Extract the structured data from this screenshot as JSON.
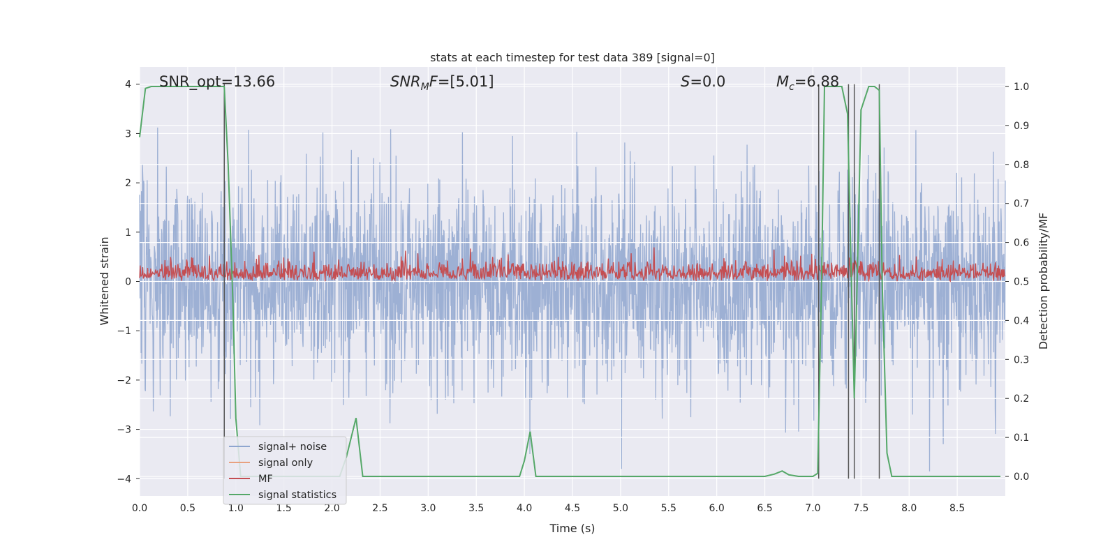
{
  "chart_data": {
    "type": "line",
    "title": "stats at each timestep for test data 389 [signal=0]",
    "xlabel": "Time (s)",
    "ylabel_left": "Whitened strain",
    "ylabel_right": "Detection probability/MF",
    "xlim": [
      0.0,
      9.0
    ],
    "ylim_left": [
      -4.35,
      4.35
    ],
    "ylim_right": [
      -0.05,
      1.05
    ],
    "xticks": [
      "0.0",
      "0.5",
      "1.0",
      "1.5",
      "2.0",
      "2.5",
      "3.0",
      "3.5",
      "4.0",
      "4.5",
      "5.0",
      "5.5",
      "6.0",
      "6.5",
      "7.0",
      "7.5",
      "8.0",
      "8.5"
    ],
    "yticks_left": [
      "4",
      "3",
      "2",
      "1",
      "0",
      "−1",
      "−2",
      "−3",
      "−4"
    ],
    "yticks_right": [
      "1.0",
      "0.9",
      "0.8",
      "0.7",
      "0.6",
      "0.5",
      "0.4",
      "0.3",
      "0.2",
      "0.1",
      "0.0"
    ],
    "grid": true,
    "annotations": {
      "snr_opt": "SNR_opt=13.66",
      "snr_mf": "=[5.01]",
      "s_val": "=0.0",
      "mc_val": "=6.88"
    },
    "legend": {
      "placement": "lower-left",
      "entries": [
        "signal+ noise",
        "signal only",
        "MF",
        "signal statistics"
      ]
    },
    "colors": {
      "signal_noise": "#8fa6cf",
      "signal_only": "#e8a17f",
      "mf": "#c44e52",
      "signal_statistics": "#55a868",
      "vlines": "#555555",
      "plot_bg": "#eaeaf2"
    },
    "series": [
      {
        "name": "signal statistics",
        "axis": "right",
        "x": [
          0.0,
          0.06,
          0.12,
          0.2,
          0.4,
          0.6,
          0.88,
          0.92,
          0.97,
          1.0,
          1.05,
          1.12,
          1.2,
          1.3,
          1.5,
          1.7,
          1.9,
          2.08,
          2.15,
          2.25,
          2.32,
          2.4,
          3.0,
          3.5,
          3.95,
          4.0,
          4.06,
          4.12,
          4.2,
          5.0,
          6.0,
          6.5,
          6.6,
          6.68,
          6.75,
          6.85,
          7.0,
          7.05,
          7.09,
          7.12,
          7.2,
          7.3,
          7.36,
          7.4,
          7.43,
          7.46,
          7.5,
          7.58,
          7.64,
          7.69,
          7.72,
          7.77,
          7.82,
          8.0,
          8.5,
          8.95
        ],
        "values": [
          0.87,
          0.995,
          1.0,
          1.0,
          1.0,
          1.0,
          1.0,
          0.8,
          0.45,
          0.15,
          0.0,
          0.0,
          0.0,
          0.0,
          0.0,
          0.0,
          0.0,
          0.0,
          0.05,
          0.15,
          0.0,
          0.0,
          0.0,
          0.0,
          0.0,
          0.04,
          0.115,
          0.0,
          0.0,
          0.0,
          0.0,
          0.0,
          0.006,
          0.014,
          0.004,
          0.0,
          0.0,
          0.008,
          0.5,
          1.0,
          1.0,
          1.0,
          0.93,
          0.5,
          0.2,
          0.5,
          0.94,
          1.0,
          1.0,
          0.99,
          0.5,
          0.06,
          0.0,
          0.0,
          0.0,
          0.0
        ]
      }
    ],
    "vlines_x": [
      0.88,
      7.06,
      7.37,
      7.43,
      7.69
    ]
  }
}
